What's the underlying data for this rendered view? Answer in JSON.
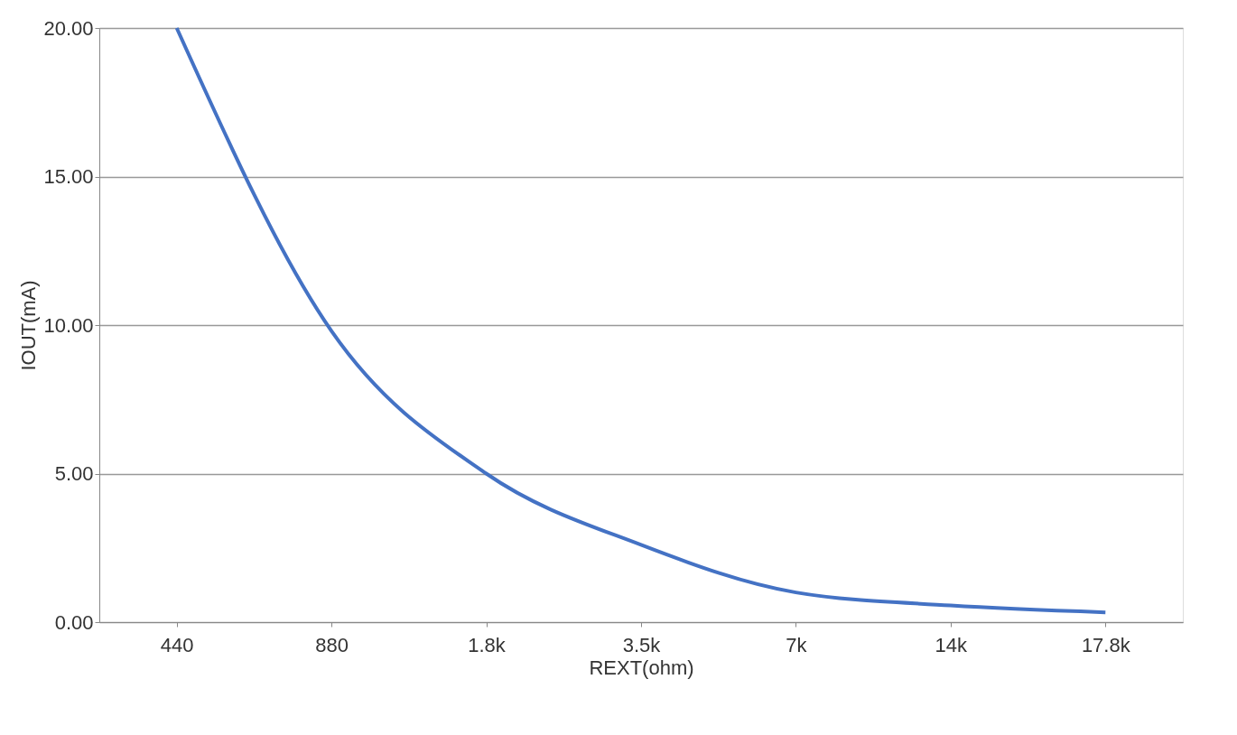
{
  "chart_data": {
    "type": "line",
    "xlabel": "REXT(ohm)",
    "ylabel": "IOUT(mA)",
    "categories": [
      "440",
      "880",
      "1.8k",
      "3.5k",
      "7k",
      "14k",
      "17.8k"
    ],
    "series": [
      {
        "color": "#4472c4",
        "values": [
          20.0,
          9.8,
          5.0,
          2.6,
          1.0,
          0.56,
          0.33
        ]
      }
    ],
    "ylim": [
      0,
      20
    ],
    "yticks": [
      {
        "value": 0,
        "label": "0.00"
      },
      {
        "value": 5,
        "label": "5.00"
      },
      {
        "value": 10,
        "label": "10.00"
      },
      {
        "value": 15,
        "label": "15.00"
      },
      {
        "value": 20,
        "label": "20.00"
      }
    ],
    "grid": "y",
    "marker": "none",
    "line_style": "solid"
  }
}
